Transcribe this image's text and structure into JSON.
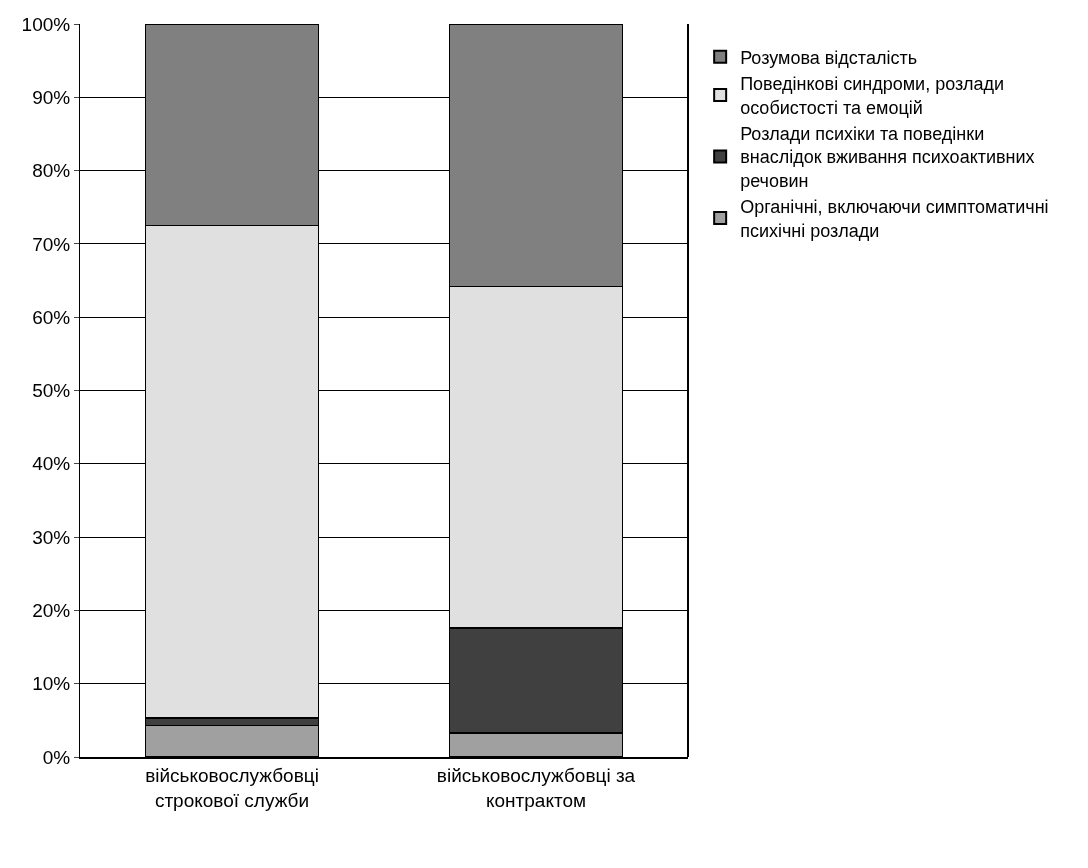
{
  "chart_data": {
    "type": "bar",
    "stacked": true,
    "categories": [
      "військовослужбовці строкової служби",
      "військовослужбовці за контрактом"
    ],
    "series": [
      {
        "name": "Органічні, включаючи симптоматичні психічні розлади",
        "color": "#a0a0a0",
        "values": [
          4.3,
          3.3
        ]
      },
      {
        "name": "Розлади психіки та поведінки внаслідок вживання психоактивних речовин",
        "color": "#404040",
        "values": [
          1.0,
          14.3
        ]
      },
      {
        "name": "Поведінкові синдроми, розлади особистості та емоцій",
        "color": "#e0e0e0",
        "values": [
          67.2,
          46.6
        ]
      },
      {
        "name": "Розумова відсталість",
        "color": "#808080",
        "values": [
          27.5,
          35.8
        ]
      }
    ],
    "ylim": [
      0,
      100
    ],
    "yticks": [
      {
        "value": 0,
        "label": "0%"
      },
      {
        "value": 10,
        "label": "10%"
      },
      {
        "value": 20,
        "label": "20%"
      },
      {
        "value": 30,
        "label": "30%"
      },
      {
        "value": 40,
        "label": "40%"
      },
      {
        "value": 50,
        "label": "50%"
      },
      {
        "value": 60,
        "label": "60%"
      },
      {
        "value": 70,
        "label": "70%"
      },
      {
        "value": 80,
        "label": "80%"
      },
      {
        "value": 90,
        "label": "90%"
      },
      {
        "value": 100,
        "label": "100%"
      }
    ],
    "grid": "y",
    "legend": "right"
  }
}
